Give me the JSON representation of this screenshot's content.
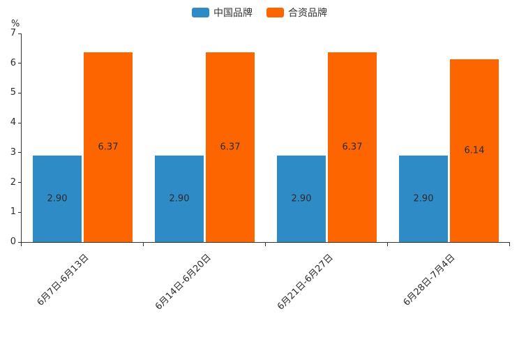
{
  "page": {
    "background": "#ffffff"
  },
  "chart_data": {
    "type": "bar",
    "title": "",
    "xlabel": "",
    "ylabel": "%",
    "ylim": [
      0,
      7
    ],
    "ytick_interval": 1,
    "grid": false,
    "legend_position": "top-center",
    "value_label_position": "inside-center",
    "axis_color": "#333333",
    "categories": [
      "6月7日-6月13日",
      "6月14日-6月20日",
      "6月21日-6月27日",
      "6月28日-7月4日"
    ],
    "series": [
      {
        "name": "中国品牌",
        "color": "#2E8BC6",
        "values": [
          2.9,
          2.9,
          2.9,
          2.9
        ],
        "labels": [
          "2.90",
          "2.90",
          "2.90",
          "2.90"
        ]
      },
      {
        "name": "合资品牌",
        "color": "#FD6500",
        "values": [
          6.37,
          6.37,
          6.37,
          6.14
        ],
        "labels": [
          "6.37",
          "6.37",
          "6.37",
          "6.14"
        ]
      }
    ]
  }
}
